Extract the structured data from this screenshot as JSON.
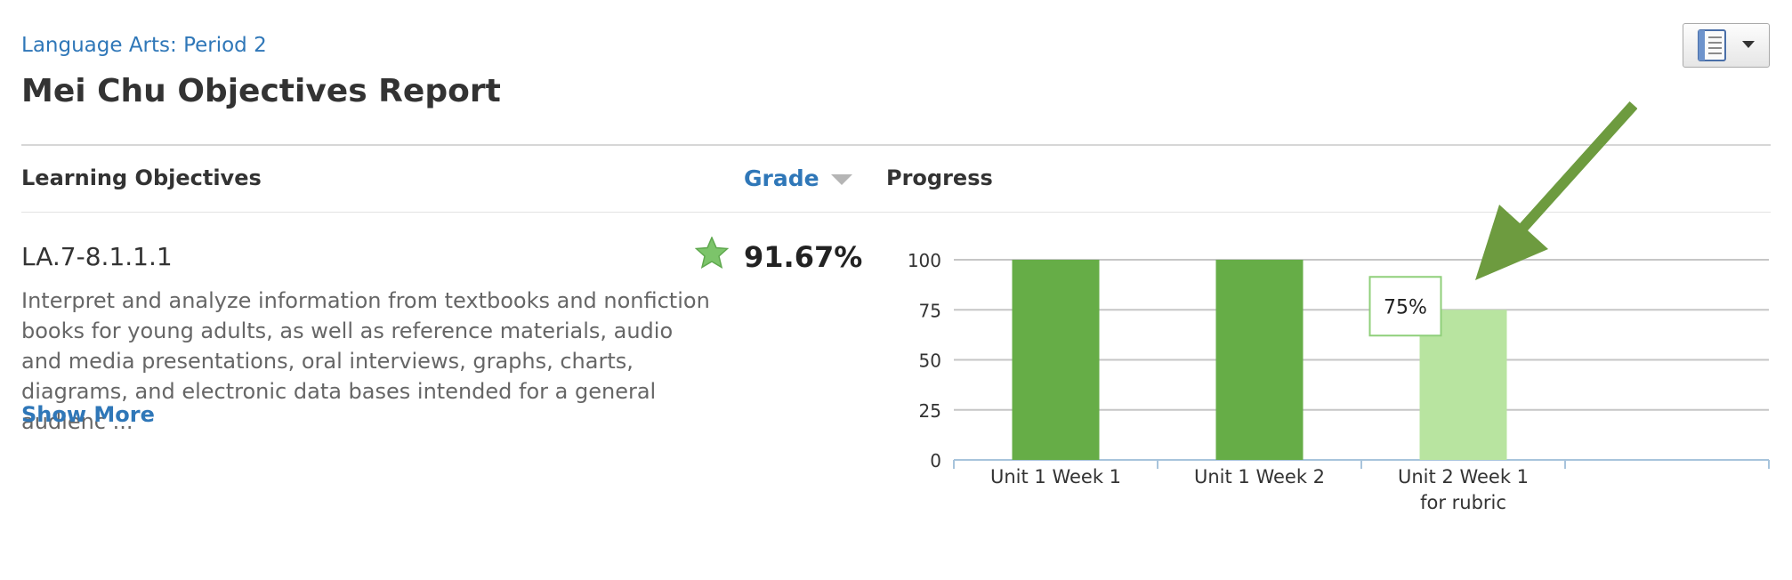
{
  "header": {
    "breadcrumb": "Language Arts: Period 2",
    "title": "Mei Chu Objectives Report",
    "toolbar_icon": "notebook-icon",
    "toolbar_dropdown_icon": "caret-down-icon"
  },
  "table": {
    "col_objectives": "Learning Objectives",
    "col_grade": "Grade",
    "col_progress": "Progress",
    "rows": [
      {
        "code": "LA.7-8.1.1.1",
        "description": "Interpret and analyze information from textbooks and nonfiction books for young adults, as well as reference materials, audio and media presentations, oral interviews, graphs, charts, diagrams, and electronic data bases intended for a general audienc ...",
        "show_more": "Show More",
        "grade": "91.67%",
        "status_icon": "star-icon"
      }
    ]
  },
  "colors": {
    "link": "#2f77b8",
    "bar_dark": "#66ad47",
    "bar_light": "#b8e4a0",
    "arrow": "#6d9b3f"
  },
  "chart_data": {
    "type": "bar",
    "categories": [
      "Unit 1 Week 1",
      "Unit 1 Week 2",
      "Unit 2 Week 1 for rubric",
      ""
    ],
    "category_lines": [
      [
        "Unit 1 Week 1"
      ],
      [
        "Unit 1 Week 2"
      ],
      [
        "Unit 2 Week 1",
        "for rubric"
      ],
      []
    ],
    "values": [
      100,
      100,
      75,
      null
    ],
    "highlight_index": 2,
    "tooltip": "75%",
    "ylim": [
      0,
      100
    ],
    "yticks": [
      0,
      25,
      50,
      75,
      100
    ],
    "grid": true
  }
}
